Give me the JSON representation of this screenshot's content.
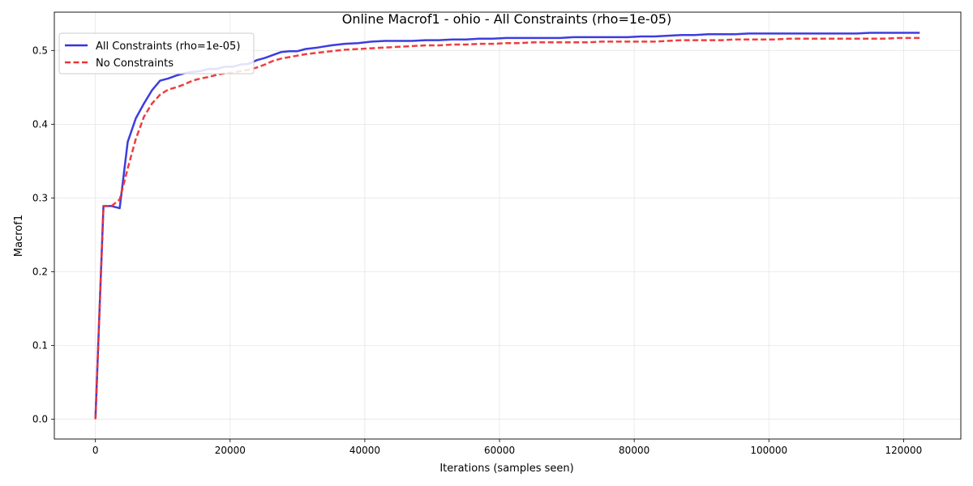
{
  "chart_data": {
    "type": "line",
    "title": "Online Macrof1 - ohio - All Constraints (rho=1e-05)",
    "xlabel": "Iterations (samples seen)",
    "ylabel": "Macrof1",
    "xlim": [
      -6100,
      128500
    ],
    "ylim": [
      -0.027,
      0.552
    ],
    "xticks": [
      0,
      20000,
      40000,
      60000,
      80000,
      100000,
      120000
    ],
    "xtick_labels": [
      "0",
      "20000",
      "40000",
      "60000",
      "80000",
      "100000",
      "120000"
    ],
    "yticks": [
      0.0,
      0.1,
      0.2,
      0.3,
      0.4,
      0.5
    ],
    "ytick_labels": [
      "0.0",
      "0.1",
      "0.2",
      "0.3",
      "0.4",
      "0.5"
    ],
    "grid": true,
    "legend_position": "upper-left",
    "series": [
      {
        "name": "All Constraints (rho=1e-05)",
        "color": "#3333dd",
        "style": "solid",
        "x": [
          0,
          1200,
          2400,
          3600,
          4800,
          6000,
          7200,
          8400,
          9600,
          10800,
          12000,
          13200,
          14400,
          15600,
          16800,
          18000,
          19200,
          20400,
          21600,
          22800,
          24000,
          25200,
          26400,
          27600,
          28800,
          30000,
          31200,
          33000,
          35000,
          37000,
          39000,
          41000,
          43000,
          45000,
          47000,
          49000,
          51000,
          53000,
          55000,
          57000,
          59000,
          61000,
          63000,
          65000,
          67000,
          69000,
          71000,
          73000,
          75000,
          77000,
          79000,
          81000,
          83000,
          85000,
          87000,
          89000,
          91000,
          93000,
          95000,
          97000,
          99000,
          101000,
          103000,
          105000,
          107000,
          109000,
          111000,
          113000,
          115000,
          117000,
          119000,
          121000,
          122400
        ],
        "y": [
          0.0,
          0.289,
          0.289,
          0.286,
          0.376,
          0.408,
          0.428,
          0.446,
          0.459,
          0.462,
          0.466,
          0.469,
          0.471,
          0.472,
          0.475,
          0.475,
          0.478,
          0.478,
          0.481,
          0.482,
          0.487,
          0.49,
          0.494,
          0.498,
          0.499,
          0.499,
          0.502,
          0.504,
          0.507,
          0.509,
          0.51,
          0.512,
          0.513,
          0.513,
          0.513,
          0.514,
          0.514,
          0.515,
          0.515,
          0.516,
          0.516,
          0.517,
          0.517,
          0.517,
          0.517,
          0.517,
          0.518,
          0.518,
          0.518,
          0.518,
          0.518,
          0.519,
          0.519,
          0.52,
          0.521,
          0.521,
          0.522,
          0.522,
          0.522,
          0.523,
          0.523,
          0.523,
          0.523,
          0.523,
          0.523,
          0.523,
          0.523,
          0.523,
          0.524,
          0.524,
          0.524,
          0.524,
          0.524
        ]
      },
      {
        "name": "No Constraints",
        "color": "#ee3333",
        "style": "dashed",
        "x": [
          0,
          1200,
          2400,
          3600,
          4800,
          6000,
          7200,
          8400,
          9600,
          10800,
          12000,
          13200,
          14400,
          15600,
          16800,
          18000,
          19200,
          20400,
          21600,
          22800,
          24000,
          25200,
          26400,
          27600,
          28800,
          30000,
          31200,
          33000,
          35000,
          37000,
          39000,
          41000,
          43000,
          45000,
          47000,
          49000,
          51000,
          53000,
          55000,
          57000,
          59000,
          61000,
          63000,
          65000,
          67000,
          69000,
          71000,
          73000,
          75000,
          77000,
          79000,
          81000,
          83000,
          85000,
          87000,
          89000,
          91000,
          93000,
          95000,
          97000,
          99000,
          101000,
          103000,
          105000,
          107000,
          109000,
          111000,
          113000,
          115000,
          117000,
          119000,
          121000,
          122400
        ],
        "y": [
          0.0,
          0.289,
          0.289,
          0.298,
          0.34,
          0.38,
          0.41,
          0.428,
          0.44,
          0.447,
          0.45,
          0.454,
          0.459,
          0.462,
          0.464,
          0.467,
          0.469,
          0.47,
          0.472,
          0.474,
          0.477,
          0.481,
          0.486,
          0.489,
          0.491,
          0.493,
          0.495,
          0.497,
          0.499,
          0.501,
          0.502,
          0.503,
          0.504,
          0.505,
          0.506,
          0.507,
          0.507,
          0.508,
          0.508,
          0.509,
          0.509,
          0.51,
          0.51,
          0.511,
          0.511,
          0.511,
          0.511,
          0.511,
          0.512,
          0.512,
          0.512,
          0.512,
          0.512,
          0.513,
          0.514,
          0.514,
          0.514,
          0.514,
          0.515,
          0.515,
          0.515,
          0.515,
          0.516,
          0.516,
          0.516,
          0.516,
          0.516,
          0.516,
          0.516,
          0.516,
          0.517,
          0.517,
          0.517
        ]
      }
    ]
  }
}
